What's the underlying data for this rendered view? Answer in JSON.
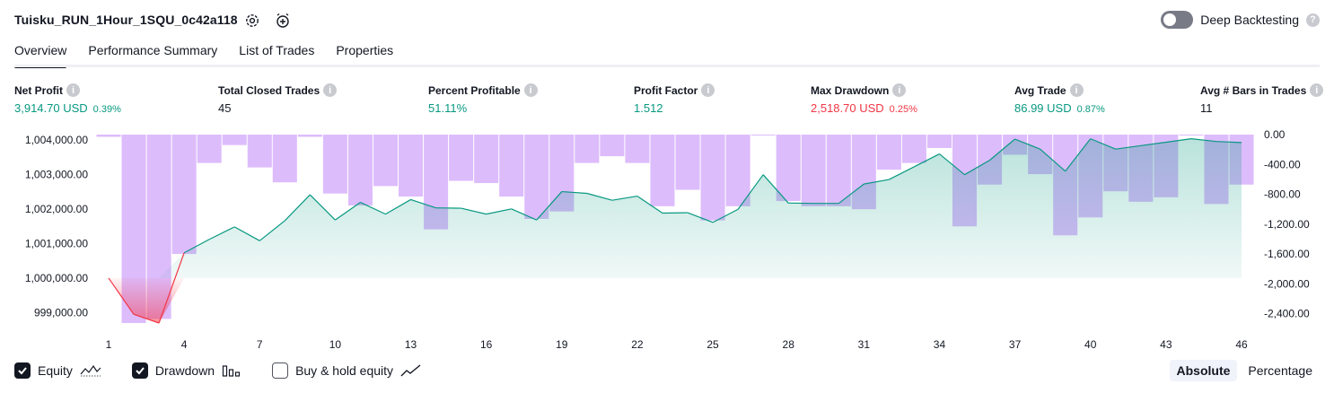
{
  "header": {
    "title": "Tuisku_RUN_1Hour_1SQU_0c42a118",
    "deep_backtesting_label": "Deep Backtesting",
    "help_glyph": "?",
    "icons": [
      "gear-icon",
      "alarm-add-icon",
      "help-icon"
    ]
  },
  "tabs": [
    {
      "label": "Overview",
      "active": true
    },
    {
      "label": "Performance Summary",
      "active": false
    },
    {
      "label": "List of Trades",
      "active": false
    },
    {
      "label": "Properties",
      "active": false
    }
  ],
  "metrics": [
    {
      "label": "Net Profit",
      "value": "3,914.70 USD",
      "pct": "0.39%",
      "color": "#089981"
    },
    {
      "label": "Total Closed Trades",
      "value": "45",
      "pct": "",
      "color": "#131722"
    },
    {
      "label": "Percent Profitable",
      "value": "51.11%",
      "pct": "",
      "color": "#089981"
    },
    {
      "label": "Profit Factor",
      "value": "1.512",
      "pct": "",
      "color": "#089981"
    },
    {
      "label": "Max Drawdown",
      "value": "2,518.70 USD",
      "pct": "0.25%",
      "color": "#f23645"
    },
    {
      "label": "Avg Trade",
      "value": "86.99 USD",
      "pct": "0.87%",
      "color": "#089981"
    },
    {
      "label": "Avg # Bars in Trades",
      "value": "11",
      "pct": "",
      "color": "#131722"
    }
  ],
  "chart_data": {
    "type": "line",
    "baseline": 1000000,
    "x": [
      1,
      2,
      3,
      4,
      5,
      6,
      7,
      8,
      9,
      10,
      11,
      12,
      13,
      14,
      15,
      16,
      17,
      18,
      19,
      20,
      21,
      22,
      23,
      24,
      25,
      26,
      27,
      28,
      29,
      30,
      31,
      32,
      33,
      34,
      35,
      36,
      37,
      38,
      39,
      40,
      41,
      42,
      43,
      44,
      45,
      46
    ],
    "x_tick_labels": [
      "1",
      "4",
      "7",
      "10",
      "13",
      "16",
      "19",
      "22",
      "25",
      "28",
      "31",
      "34",
      "37",
      "40",
      "43",
      "46"
    ],
    "y_left_ticks": [
      "1,004,000.00",
      "1,003,000.00",
      "1,002,000.00",
      "1,001,000.00",
      "1,000,000.00",
      "999,000.00"
    ],
    "y_left_range": [
      998700,
      1004150
    ],
    "y_right_ticks": [
      "0.00",
      "-400.00",
      "-800.00",
      "-1,200.00",
      "-1,600.00",
      "-2,000.00",
      "-2,400.00"
    ],
    "y_right_range": [
      -2525,
      0
    ],
    "series": [
      {
        "name": "Equity",
        "color": "#089981",
        "values": [
          1000000,
          998950,
          998700,
          1000730,
          1001120,
          1001480,
          1001080,
          1001660,
          1002410,
          1001680,
          1002190,
          1001850,
          1002270,
          1002030,
          1002020,
          1001850,
          1002000,
          1001680,
          1002500,
          1002450,
          1002250,
          1002370,
          1001880,
          1001890,
          1001610,
          1001990,
          1002990,
          1002170,
          1002160,
          1002160,
          1002720,
          1002850,
          1003220,
          1003590,
          1002990,
          1003410,
          1004020,
          1003730,
          1003090,
          1004030,
          1003730,
          1003830,
          1003930,
          1004030,
          1003950,
          1003920
        ]
      },
      {
        "name": "Drawdown",
        "color": "#d1a6fb",
        "values": [
          -30,
          -2525,
          -2470,
          -1600,
          -380,
          -140,
          -440,
          -640,
          -30,
          -790,
          -950,
          -690,
          -830,
          -1270,
          -620,
          -650,
          -830,
          -1130,
          -1030,
          -380,
          -290,
          -380,
          -960,
          -740,
          -1150,
          -960,
          -1,
          -890,
          -960,
          -960,
          -1000,
          -470,
          -380,
          -180,
          -1230,
          -670,
          -270,
          -530,
          -1350,
          -1110,
          -760,
          -900,
          -840,
          -1,
          -930,
          -670
        ]
      }
    ],
    "legend": [
      {
        "label": "Equity",
        "checked": true,
        "icon": "equity-line-icon"
      },
      {
        "label": "Drawdown",
        "checked": true,
        "icon": "drawdown-bars-icon"
      },
      {
        "label": "Buy & hold equity",
        "checked": false,
        "icon": "buy-hold-line-icon"
      }
    ]
  },
  "view_toggle": {
    "absolute": "Absolute",
    "percentage": "Percentage",
    "selected": "Absolute"
  }
}
